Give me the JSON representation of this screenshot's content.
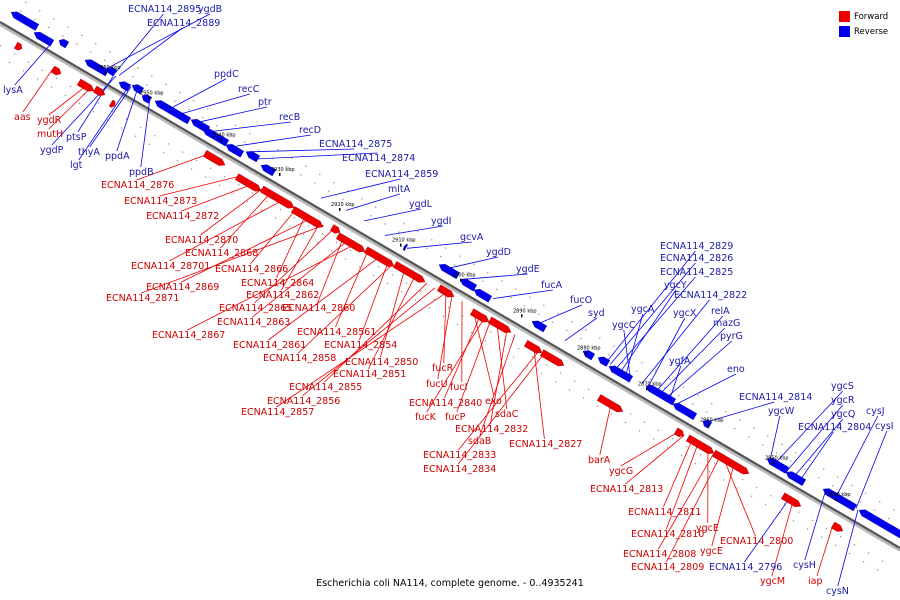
{
  "caption": "Escherichia coli NA114, complete genome. - 0..4935241",
  "legend": {
    "items": [
      {
        "label": "Forward",
        "color": "#ee0000"
      },
      {
        "label": "Reverse",
        "color": "#0000ee"
      }
    ]
  },
  "colors": {
    "forward": "#ee0000",
    "reverse": "#0000ee",
    "forward_label": "#cc0000",
    "reverse_label": "#1a1aa8",
    "backbone": "#555555"
  },
  "ticks": [
    "2960 kbp",
    "2950 kbp",
    "2940 kbp",
    "2930 kbp",
    "2920 kbp",
    "2910 kbp",
    "2900 kbp",
    "2890 kbp",
    "2880 kbp",
    "2870 kbp",
    "2860 kbp",
    "2850 kbp",
    "2840 kbp"
  ],
  "genes": [
    {
      "label": "ECNA114_2895",
      "strand": "reverse"
    },
    {
      "label": "ECNA114_2889",
      "strand": "reverse"
    },
    {
      "label": "ygdB",
      "strand": "reverse"
    },
    {
      "label": "lysA",
      "strand": "reverse"
    },
    {
      "label": "ppdC",
      "strand": "reverse"
    },
    {
      "label": "recC",
      "strand": "reverse"
    },
    {
      "label": "ptr",
      "strand": "reverse"
    },
    {
      "label": "recB",
      "strand": "reverse"
    },
    {
      "label": "recD",
      "strand": "reverse"
    },
    {
      "label": "aas",
      "strand": "forward"
    },
    {
      "label": "ygdR",
      "strand": "forward"
    },
    {
      "label": "mutH",
      "strand": "forward"
    },
    {
      "label": "ptsP",
      "strand": "reverse"
    },
    {
      "label": "ygdP",
      "strand": "reverse"
    },
    {
      "label": "lgt",
      "strand": "reverse"
    },
    {
      "label": "thyA",
      "strand": "reverse"
    },
    {
      "label": "ppdA",
      "strand": "reverse"
    },
    {
      "label": "ppdB",
      "strand": "reverse"
    },
    {
      "label": "ECNA114_2875",
      "strand": "reverse"
    },
    {
      "label": "ECNA114_2874",
      "strand": "reverse"
    },
    {
      "label": "ECNA114_2876",
      "strand": "forward"
    },
    {
      "label": "ECNA114_2859",
      "strand": "reverse"
    },
    {
      "label": "mltA",
      "strand": "reverse"
    },
    {
      "label": "ECNA114_2873",
      "strand": "forward"
    },
    {
      "label": "ECNA114_2872",
      "strand": "forward"
    },
    {
      "label": "ygdL",
      "strand": "reverse"
    },
    {
      "label": "ygdI",
      "strand": "reverse"
    },
    {
      "label": "gcvA",
      "strand": "reverse"
    },
    {
      "label": "ygdD",
      "strand": "reverse"
    },
    {
      "label": "ygdE",
      "strand": "reverse"
    },
    {
      "label": "fucA",
      "strand": "reverse"
    },
    {
      "label": "fucO",
      "strand": "reverse"
    },
    {
      "label": "syd",
      "strand": "reverse"
    },
    {
      "label": "ECNA114_2870",
      "strand": "forward"
    },
    {
      "label": "ECNA114_2868",
      "strand": "forward"
    },
    {
      "label": "ECNA114_28701",
      "strand": "forward"
    },
    {
      "label": "ECNA114_2866",
      "strand": "forward"
    },
    {
      "label": "ECNA114_2864",
      "strand": "forward"
    },
    {
      "label": "ECNA114_2869",
      "strand": "forward"
    },
    {
      "label": "ECNA114_2862",
      "strand": "forward"
    },
    {
      "label": "ECNA114_2871",
      "strand": "forward"
    },
    {
      "label": "ECNA114_2865",
      "strand": "forward"
    },
    {
      "label": "ECNA114_2860",
      "strand": "forward"
    },
    {
      "label": "ECNA114_2863",
      "strand": "forward"
    },
    {
      "label": "ECNA114_2867",
      "strand": "forward"
    },
    {
      "label": "ECNA114_28561",
      "strand": "forward"
    },
    {
      "label": "ECNA114_2861",
      "strand": "forward"
    },
    {
      "label": "ECNA114_2854",
      "strand": "forward"
    },
    {
      "label": "ECNA114_2858",
      "strand": "forward"
    },
    {
      "label": "ECNA114_2850",
      "strand": "forward"
    },
    {
      "label": "ECNA114_2851",
      "strand": "forward"
    },
    {
      "label": "ECNA114_2855",
      "strand": "forward"
    },
    {
      "label": "ECNA114_2856",
      "strand": "forward"
    },
    {
      "label": "ECNA114_2857",
      "strand": "forward"
    },
    {
      "label": "fucR",
      "strand": "forward"
    },
    {
      "label": "fucU",
      "strand": "forward"
    },
    {
      "label": "fucI",
      "strand": "forward"
    },
    {
      "label": "exo",
      "strand": "forward"
    },
    {
      "label": "ECNA114_2840",
      "strand": "forward"
    },
    {
      "label": "fucK",
      "strand": "forward"
    },
    {
      "label": "fucP",
      "strand": "forward"
    },
    {
      "label": "sdaC",
      "strand": "forward"
    },
    {
      "label": "ECNA114_2832",
      "strand": "forward"
    },
    {
      "label": "sdaB",
      "strand": "forward"
    },
    {
      "label": "ECNA114_2827",
      "strand": "forward"
    },
    {
      "label": "ECNA114_2833",
      "strand": "forward"
    },
    {
      "label": "ECNA114_2834",
      "strand": "forward"
    },
    {
      "label": "ECNA114_2829",
      "strand": "reverse"
    },
    {
      "label": "ECNA114_2826",
      "strand": "reverse"
    },
    {
      "label": "ECNA114_2825",
      "strand": "reverse"
    },
    {
      "label": "ygcY",
      "strand": "reverse"
    },
    {
      "label": "ygcA",
      "strand": "reverse"
    },
    {
      "label": "ygcC",
      "strand": "reverse"
    },
    {
      "label": "ECNA114_2822",
      "strand": "reverse"
    },
    {
      "label": "ygcX",
      "strand": "reverse"
    },
    {
      "label": "relA",
      "strand": "reverse"
    },
    {
      "label": "mazG",
      "strand": "reverse"
    },
    {
      "label": "pyrG",
      "strand": "reverse"
    },
    {
      "label": "ygfA",
      "strand": "reverse"
    },
    {
      "label": "eno",
      "strand": "reverse"
    },
    {
      "label": "ECNA114_2814",
      "strand": "reverse"
    },
    {
      "label": "ygcW",
      "strand": "reverse"
    },
    {
      "label": "ygcS",
      "strand": "reverse"
    },
    {
      "label": "ygcR",
      "strand": "reverse"
    },
    {
      "label": "ygcQ",
      "strand": "reverse"
    },
    {
      "label": "ECNA114_2804",
      "strand": "reverse"
    },
    {
      "label": "cysJ",
      "strand": "reverse"
    },
    {
      "label": "cysI",
      "strand": "reverse"
    },
    {
      "label": "barA",
      "strand": "forward"
    },
    {
      "label": "ygcG",
      "strand": "forward"
    },
    {
      "label": "ECNA114_2813",
      "strand": "forward"
    },
    {
      "label": "ECNA114_2811",
      "strand": "forward"
    },
    {
      "label": "ECNA114_2810",
      "strand": "forward"
    },
    {
      "label": "ygcE",
      "strand": "forward"
    },
    {
      "label": "ECNA114_2800",
      "strand": "forward"
    },
    {
      "label": "ECNA114_2808",
      "strand": "forward"
    },
    {
      "label": "ygcE",
      "strand": "forward"
    },
    {
      "label": "ECNA114_2809",
      "strand": "forward"
    },
    {
      "label": "ECNA114_2796",
      "strand": "reverse"
    },
    {
      "label": "ygcM",
      "strand": "forward"
    },
    {
      "label": "cysH",
      "strand": "reverse"
    },
    {
      "label": "iap",
      "strand": "forward"
    },
    {
      "label": "cysN",
      "strand": "reverse"
    }
  ]
}
